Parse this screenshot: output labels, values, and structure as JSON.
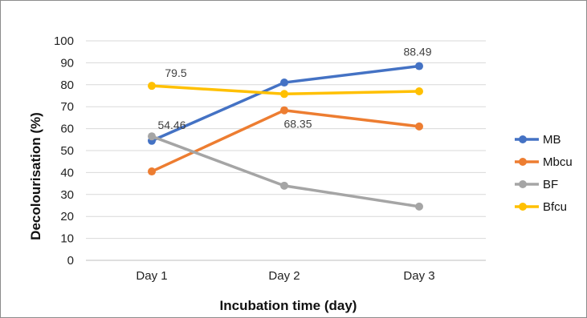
{
  "chart_data": {
    "type": "line",
    "title": "",
    "xlabel": "Incubation time (day)",
    "ylabel": "Decolourisation (%)",
    "categories": [
      "Day 1",
      "Day 2",
      "Day 3"
    ],
    "ylim": [
      0,
      100
    ],
    "yticks": [
      0,
      10,
      20,
      30,
      40,
      50,
      60,
      70,
      80,
      90,
      100
    ],
    "grid": true,
    "legend_position": "right",
    "series": [
      {
        "name": "MB",
        "color": "#4472C4",
        "values": [
          54.46,
          81,
          88.49
        ]
      },
      {
        "name": "Mbcu",
        "color": "#ED7D31",
        "values": [
          40.5,
          68.35,
          61
        ]
      },
      {
        "name": "BF",
        "color": "#A5A5A5",
        "values": [
          56.5,
          34,
          24.5
        ]
      },
      {
        "name": "Bfcu",
        "color": "#FFC000",
        "values": [
          79.5,
          75.8,
          77
        ]
      }
    ],
    "data_labels": [
      {
        "text": "79.5",
        "series": "Bfcu",
        "category": "Day 1"
      },
      {
        "text": "54.46",
        "series": "MB",
        "category": "Day 1"
      },
      {
        "text": "68.35",
        "series": "Mbcu",
        "category": "Day 2"
      },
      {
        "text": "88.49",
        "series": "MB",
        "category": "Day 3"
      }
    ]
  }
}
